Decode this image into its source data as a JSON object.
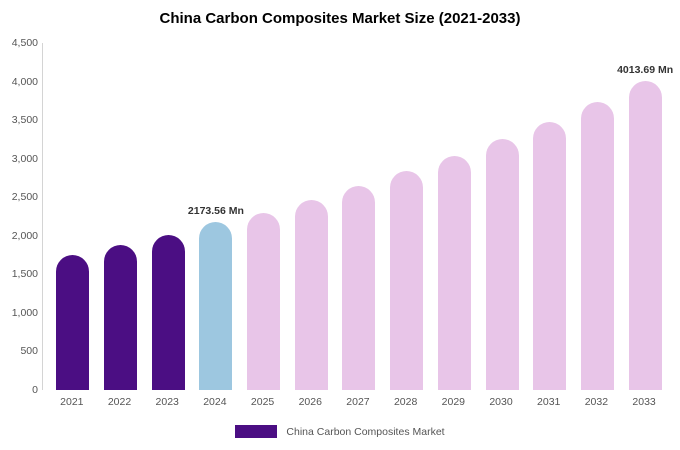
{
  "title": "China Carbon Composites Market Size (2021-2033)",
  "chart_data": {
    "type": "bar",
    "title": "China Carbon Composites Market Size (2021-2033)",
    "xlabel": "",
    "ylabel": "",
    "categories": [
      "2021",
      "2022",
      "2023",
      "2024",
      "2025",
      "2026",
      "2027",
      "2028",
      "2029",
      "2030",
      "2031",
      "2032",
      "2033"
    ],
    "values": [
      1750,
      1880,
      2010,
      2173.56,
      2300,
      2470,
      2650,
      2840,
      3040,
      3250,
      3480,
      3730,
      4013.69
    ],
    "ylim": [
      0,
      4500
    ],
    "ytick_step": 500,
    "ytick_labels": [
      "0",
      "500",
      "1,000",
      "1,500",
      "2,000",
      "2,500",
      "3,000",
      "3,500",
      "4,000",
      "4,500"
    ],
    "grid": false,
    "legend": {
      "position": "bottom",
      "label": "China Carbon Composites Market",
      "swatch_color": "#4b0e83"
    },
    "annotations": [
      {
        "index": 3,
        "text": "2173.56 Mn"
      },
      {
        "index": 12,
        "text": "4013.69 Mn"
      }
    ],
    "bar_colors": {
      "historical": "#4b0e83",
      "highlight": "#9dc7e0",
      "forecast": "#e8c5e8"
    },
    "color_keys": [
      "historical",
      "historical",
      "historical",
      "highlight",
      "forecast",
      "forecast",
      "forecast",
      "forecast",
      "forecast",
      "forecast",
      "forecast",
      "forecast",
      "forecast"
    ]
  }
}
